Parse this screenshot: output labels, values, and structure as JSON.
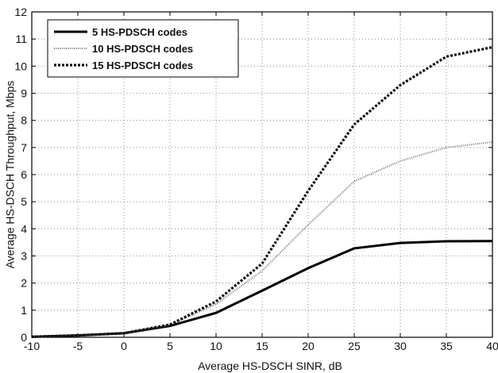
{
  "chart_data": {
    "type": "line",
    "xlabel": "Average HS-DSCH SINR, dB",
    "ylabel": "Average HS-DSCH Throughput, Mbps",
    "xlim": [
      -10,
      40
    ],
    "ylim": [
      0,
      12
    ],
    "xticks": [
      -10,
      -5,
      0,
      5,
      10,
      15,
      20,
      25,
      30,
      35,
      40
    ],
    "yticks": [
      0,
      1,
      2,
      3,
      4,
      5,
      6,
      7,
      8,
      9,
      10,
      11,
      12
    ],
    "grid": true,
    "legend_position": "top-left",
    "x": [
      -10,
      -5,
      0,
      5,
      10,
      15,
      20,
      25,
      30,
      35,
      40
    ],
    "series": [
      {
        "name": "5 HS-PDSCH codes",
        "style": "solid",
        "color": "#000000",
        "values": [
          0.02,
          0.07,
          0.15,
          0.42,
          0.9,
          1.72,
          2.55,
          3.28,
          3.48,
          3.54,
          3.55
        ]
      },
      {
        "name": "10 HS-PDSCH codes",
        "style": "dotted",
        "color": "#777777",
        "values": [
          0.02,
          0.07,
          0.15,
          0.45,
          1.22,
          2.45,
          4.15,
          5.75,
          6.5,
          7.0,
          7.2
        ]
      },
      {
        "name": "15 HS-PDSCH codes",
        "style": "dashed",
        "color": "#111111",
        "values": [
          0.02,
          0.07,
          0.15,
          0.47,
          1.32,
          2.72,
          5.4,
          7.85,
          9.3,
          10.35,
          10.7
        ]
      }
    ]
  }
}
